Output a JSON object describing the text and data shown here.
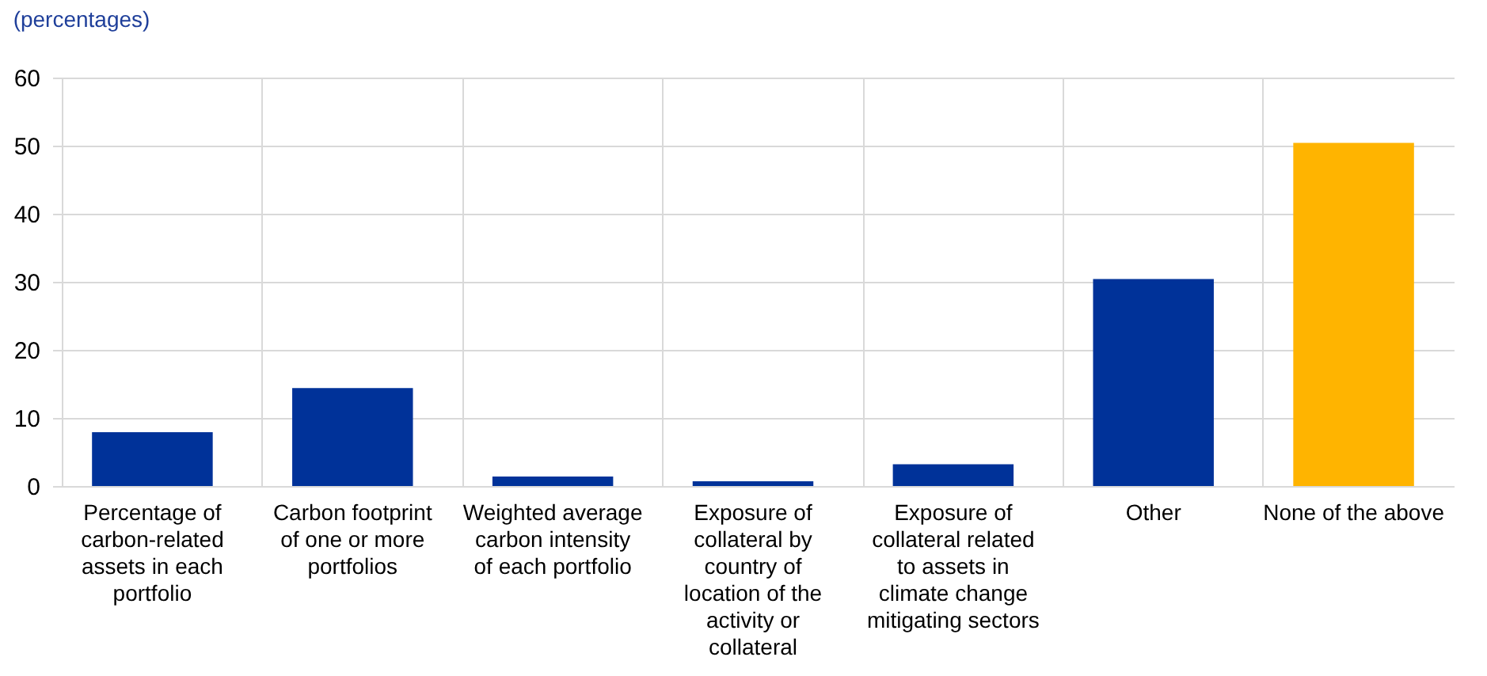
{
  "chart_data": {
    "type": "bar",
    "title": "(percentages)",
    "categories": [
      "Percentage of carbon-related assets in each portfolio",
      "Carbon footprint of one or more portfolios",
      "Weighted average carbon intensity of each portfolio",
      "Exposure of collateral by country of location of the activity or collateral",
      "Exposure of collateral related to assets in climate change mitigating sectors",
      "Other",
      "None of the above"
    ],
    "values": [
      7.9,
      14.4,
      1.4,
      0.7,
      3.2,
      30.4,
      50.4
    ],
    "colors": [
      "#003299",
      "#003299",
      "#003299",
      "#003299",
      "#003299",
      "#003299",
      "#ffb400"
    ],
    "ylim": [
      0,
      60
    ],
    "yticks": [
      0,
      10,
      20,
      30,
      40,
      50,
      60
    ],
    "grid": true
  }
}
